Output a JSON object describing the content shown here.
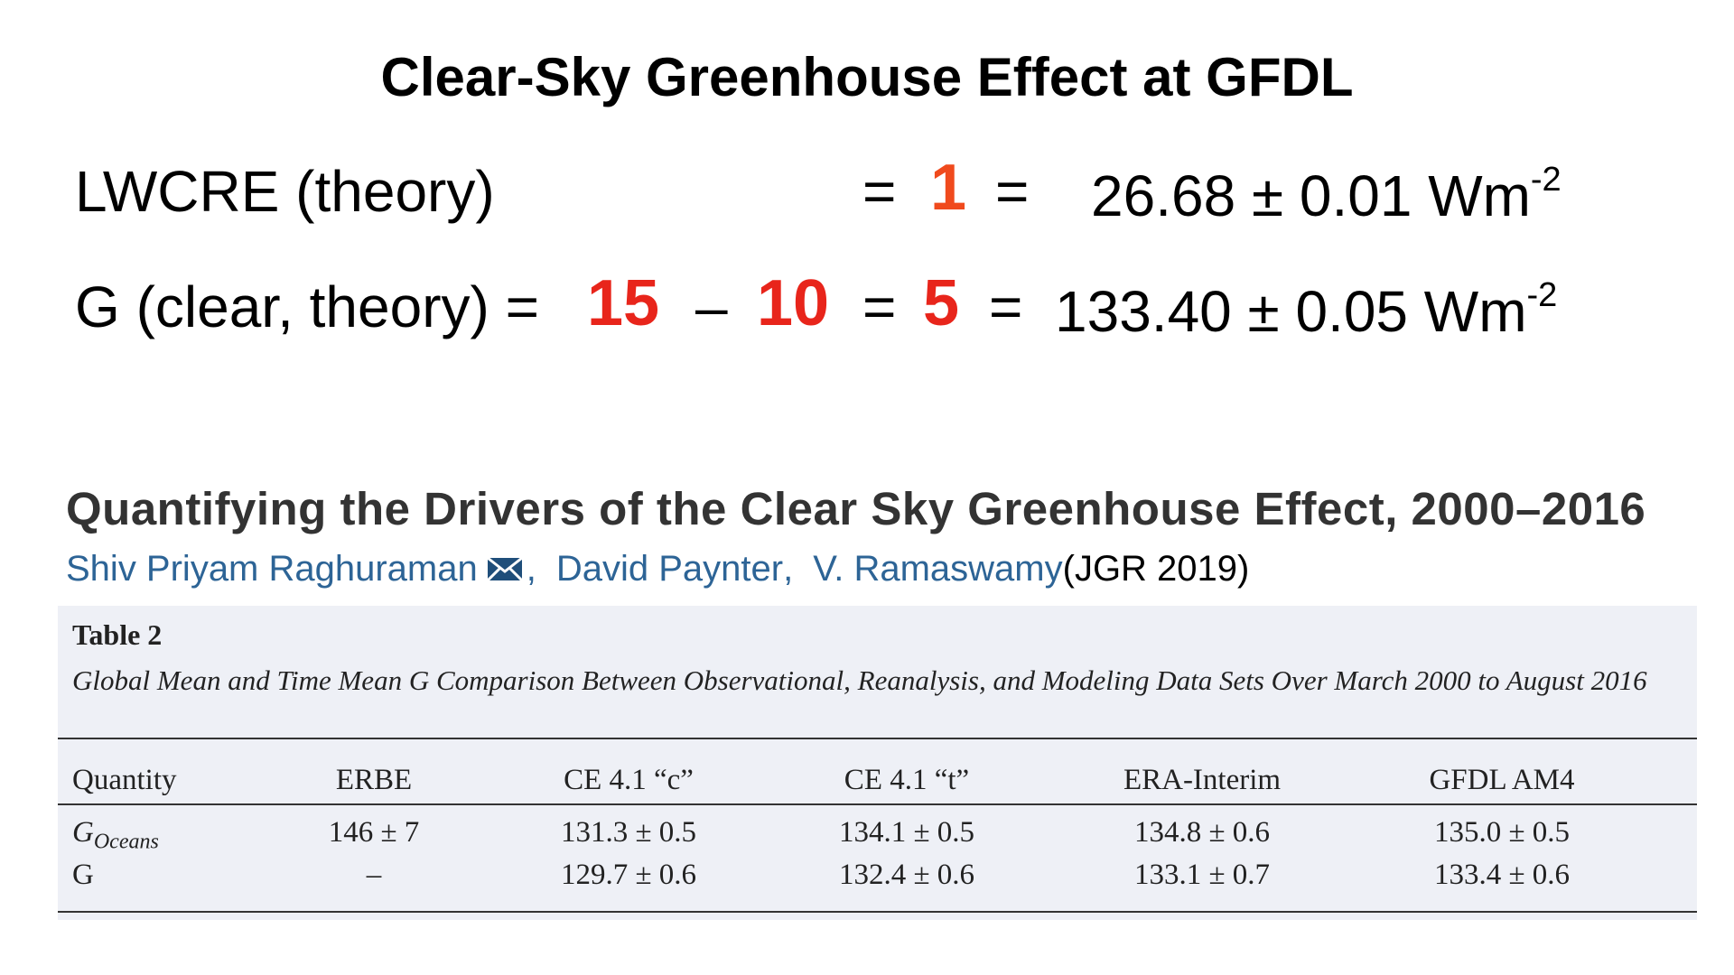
{
  "header": {
    "title": "Clear-Sky Greenhouse Effect at GFDL"
  },
  "equations": [
    {
      "label": "LWCRE (theory)",
      "eq1": "=",
      "count": "1",
      "eq2": "=",
      "value": "26.68 ± 0.01 Wm",
      "exponent": "-2"
    },
    {
      "label": "G (clear, theory) =",
      "terms": [
        "15",
        "–",
        "10",
        "=",
        "5"
      ],
      "eq2": "=",
      "value": "133.40 ± 0.05 Wm",
      "exponent": "-2"
    }
  ],
  "paper": {
    "title": "Quantifying the Drivers of the Clear Sky Greenhouse Effect, 2000–2016",
    "authors": [
      {
        "name": "Shiv Priyam Raghuraman",
        "sep": ","
      },
      {
        "name": "David Paynter",
        "sep": ","
      },
      {
        "name": "V. Ramaswamy"
      }
    ],
    "journal": "(JGR 2019)"
  },
  "table": {
    "title": "Table 2",
    "caption": "Global Mean and Time Mean G Comparison Between Observational, Reanalysis, and Modeling Data Sets Over March 2000 to August 2016",
    "header": [
      "Quantity",
      "ERBE",
      "CE 4.1 “c”",
      "CE 4.1 “t”",
      "ERA-Interim",
      "GFDL AM4"
    ],
    "rows": [
      {
        "label": "G",
        "label_sub": "Oceans",
        "cells": [
          "146 ± 7",
          "131.3 ± 0.5",
          "134.1 ± 0.5",
          "134.8 ± 0.6",
          "135.0 ± 0.5"
        ]
      },
      {
        "label": "G",
        "cells": [
          "–",
          "129.7 ± 0.6",
          "132.4 ± 0.6",
          "133.1 ± 0.7",
          "133.4 ± 0.6"
        ]
      }
    ]
  }
}
